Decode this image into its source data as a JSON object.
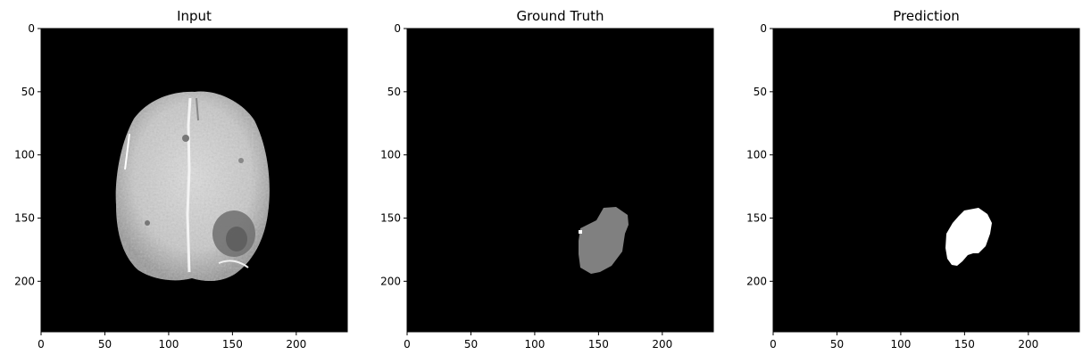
{
  "chart_data": [
    {
      "type": "heatmap",
      "title": "Input",
      "image": "grayscale MRI brain slice",
      "xlim": [
        0,
        240
      ],
      "ylim": [
        240,
        0
      ],
      "xticks": [
        0,
        50,
        100,
        150,
        200
      ],
      "yticks": [
        0,
        50,
        100,
        150,
        200
      ],
      "xtick_labels": [
        "0",
        "50",
        "100",
        "150",
        "200"
      ],
      "ytick_labels": [
        "0",
        "50",
        "100",
        "150",
        "200"
      ]
    },
    {
      "type": "heatmap",
      "title": "Ground Truth",
      "image": "segmentation mask",
      "mask_color": "#808080",
      "mask_extent": {
        "x": [
          133,
          172
        ],
        "y": [
          142,
          193
        ]
      },
      "xlim": [
        0,
        240
      ],
      "ylim": [
        240,
        0
      ],
      "xticks": [
        0,
        50,
        100,
        150,
        200
      ],
      "yticks": [
        0,
        50,
        100,
        150,
        200
      ],
      "xtick_labels": [
        "0",
        "50",
        "100",
        "150",
        "200"
      ],
      "ytick_labels": [
        "0",
        "50",
        "100",
        "150",
        "200"
      ]
    },
    {
      "type": "heatmap",
      "title": "Prediction",
      "image": "predicted segmentation mask",
      "mask_color": "#ffffff",
      "mask_extent": {
        "x": [
          135,
          172
        ],
        "y": [
          145,
          186
        ]
      },
      "xlim": [
        0,
        240
      ],
      "ylim": [
        240,
        0
      ],
      "xticks": [
        0,
        50,
        100,
        150,
        200
      ],
      "yticks": [
        0,
        50,
        100,
        150,
        200
      ],
      "xtick_labels": [
        "0",
        "50",
        "100",
        "150",
        "200"
      ],
      "ytick_labels": [
        "0",
        "50",
        "100",
        "150",
        "200"
      ]
    }
  ],
  "colors": {
    "background": "#000000",
    "axes": "#000000"
  }
}
